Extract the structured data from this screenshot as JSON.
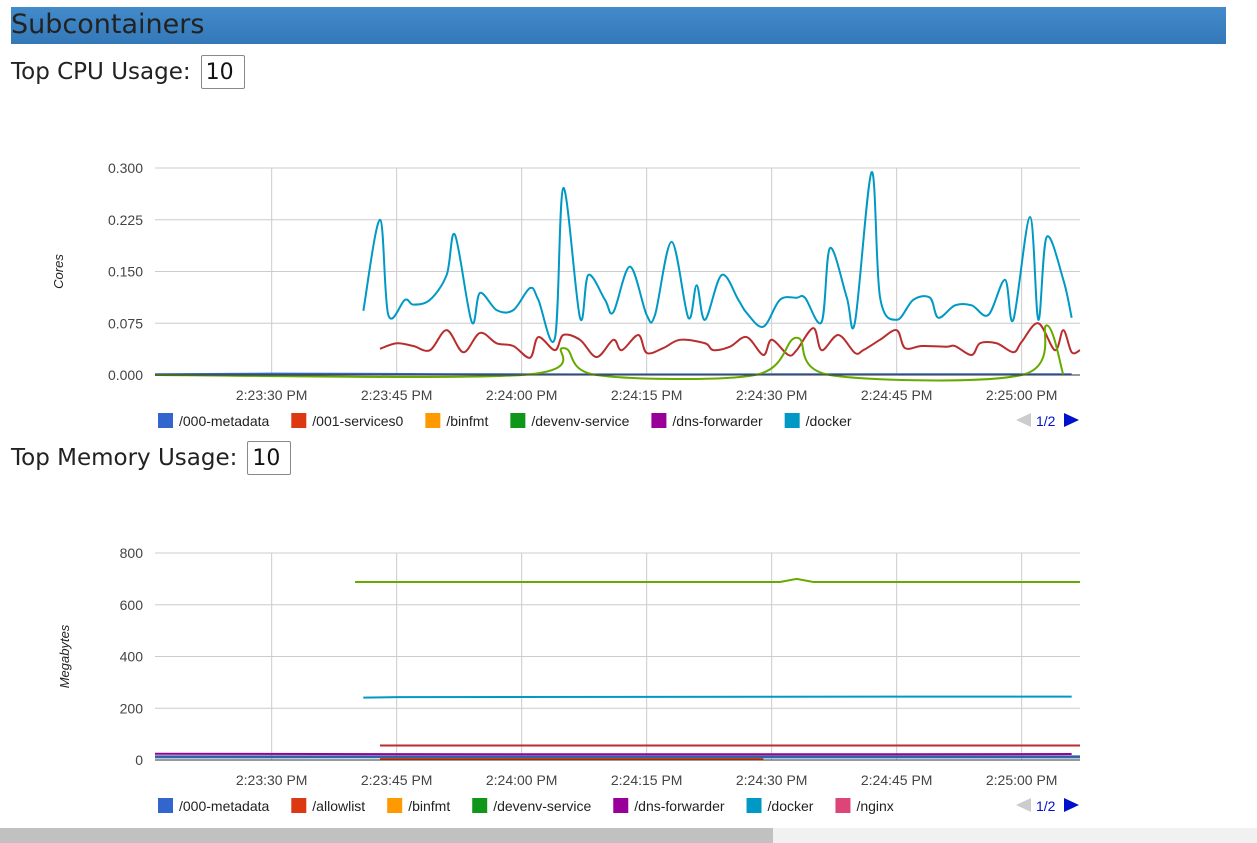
{
  "header": {
    "title": "Subcontainers"
  },
  "cpu": {
    "label": "Top CPU Usage:",
    "count": "10"
  },
  "memory": {
    "label": "Top Memory Usage:",
    "count": "10"
  },
  "chart_data": [
    {
      "type": "line",
      "ylabel": "Cores",
      "ylim": [
        0,
        0.3
      ],
      "yticks": [
        "0.000",
        "0.075",
        "0.150",
        "0.225",
        "0.300"
      ],
      "ytick_values": [
        0,
        0.075,
        0.15,
        0.225,
        0.3
      ],
      "xlim": [
        "14:23:16",
        "14:25:07"
      ],
      "xticks": [
        "2:23:30 PM",
        "2:23:45 PM",
        "2:24:00 PM",
        "2:24:15 PM",
        "2:24:30 PM",
        "2:24:45 PM",
        "2:25:00 PM"
      ],
      "xtick_times": [
        "14:23:30",
        "14:23:45",
        "14:24:00",
        "14:24:15",
        "14:24:30",
        "14:24:45",
        "14:25:00"
      ],
      "grid": true,
      "legend_position": "bottom",
      "legend_page": "1/2",
      "smooth": true,
      "legend": [
        {
          "name": "/000-metadata",
          "color": "#3366cc"
        },
        {
          "name": "/001-services0",
          "color": "#dc3912"
        },
        {
          "name": "/binfmt",
          "color": "#ff9900"
        },
        {
          "name": "/devenv-service",
          "color": "#109618"
        },
        {
          "name": "/dns-forwarder",
          "color": "#990099"
        },
        {
          "name": "/docker",
          "color": "#0099c6"
        }
      ],
      "series": [
        {
          "color": "#3366cc",
          "points": [
            [
              "14:23:16",
              0.001
            ],
            [
              "14:23:30",
              0.002
            ],
            [
              "14:24:00",
              0.001
            ],
            [
              "14:24:30",
              0.001
            ],
            [
              "14:25:06",
              0.001
            ]
          ]
        },
        {
          "color": "#b82e2e",
          "points": [
            [
              "14:23:43",
              0.038
            ],
            [
              "14:23:45",
              0.046
            ],
            [
              "14:23:47",
              0.042
            ],
            [
              "14:23:49",
              0.036
            ],
            [
              "14:23:51",
              0.065
            ],
            [
              "14:23:53",
              0.033
            ],
            [
              "14:23:55",
              0.061
            ],
            [
              "14:23:57",
              0.046
            ],
            [
              "14:23:59",
              0.042
            ],
            [
              "14:24:01",
              0.025
            ],
            [
              "14:24:02",
              0.055
            ],
            [
              "14:24:04",
              0.036
            ],
            [
              "14:24:05",
              0.058
            ],
            [
              "14:24:07",
              0.051
            ],
            [
              "14:24:09",
              0.026
            ],
            [
              "14:24:11",
              0.051
            ],
            [
              "14:24:12",
              0.036
            ],
            [
              "14:24:14",
              0.058
            ],
            [
              "14:24:15",
              0.032
            ],
            [
              "14:24:17",
              0.039
            ],
            [
              "14:24:19",
              0.051
            ],
            [
              "14:24:22",
              0.046
            ],
            [
              "14:24:23",
              0.036
            ],
            [
              "14:24:25",
              0.041
            ],
            [
              "14:24:27",
              0.055
            ],
            [
              "14:24:29",
              0.029
            ],
            [
              "14:24:30",
              0.051
            ],
            [
              "14:24:32",
              0.029
            ],
            [
              "14:24:33",
              0.036
            ],
            [
              "14:24:35",
              0.068
            ],
            [
              "14:24:36",
              0.036
            ],
            [
              "14:24:38",
              0.058
            ],
            [
              "14:24:40",
              0.032
            ],
            [
              "14:24:41",
              0.036
            ],
            [
              "14:24:43",
              0.051
            ],
            [
              "14:24:45",
              0.065
            ],
            [
              "14:24:46",
              0.039
            ],
            [
              "14:24:48",
              0.042
            ],
            [
              "14:24:51",
              0.041
            ],
            [
              "14:24:52",
              0.042
            ],
            [
              "14:24:54",
              0.029
            ],
            [
              "14:24:55",
              0.046
            ],
            [
              "14:24:57",
              0.046
            ],
            [
              "14:24:59",
              0.033
            ],
            [
              "14:25:00",
              0.048
            ],
            [
              "14:25:02",
              0.075
            ],
            [
              "14:25:04",
              0.036
            ],
            [
              "14:25:05",
              0.065
            ],
            [
              "14:25:06",
              0.033
            ],
            [
              "14:25:07",
              0.036
            ]
          ]
        },
        {
          "color": "#66aa00",
          "points": [
            [
              "14:23:16",
              0
            ],
            [
              "14:24:00",
              0
            ],
            [
              "14:24:05",
              0.039
            ],
            [
              "14:24:09",
              0
            ],
            [
              "14:24:28",
              0
            ],
            [
              "14:24:33",
              0.054
            ],
            [
              "14:24:37",
              0
            ],
            [
              "14:25:00",
              0
            ],
            [
              "14:25:03",
              0.072
            ],
            [
              "14:25:05",
              0
            ]
          ]
        },
        {
          "color": "#0099c6",
          "points": [
            [
              "14:23:41",
              0.093
            ],
            [
              "14:23:43",
              0.225
            ],
            [
              "14:23:44",
              0.087
            ],
            [
              "14:23:46",
              0.109
            ],
            [
              "14:23:47",
              0.102
            ],
            [
              "14:23:49",
              0.109
            ],
            [
              "14:23:51",
              0.145
            ],
            [
              "14:23:52",
              0.203
            ],
            [
              "14:23:54",
              0.077
            ],
            [
              "14:23:55",
              0.119
            ],
            [
              "14:23:57",
              0.094
            ],
            [
              "14:23:59",
              0.094
            ],
            [
              "14:24:01",
              0.126
            ],
            [
              "14:24:02",
              0.109
            ],
            [
              "14:24:04",
              0.054
            ],
            [
              "14:24:05",
              0.271
            ],
            [
              "14:24:07",
              0.083
            ],
            [
              "14:24:08",
              0.145
            ],
            [
              "14:24:10",
              0.109
            ],
            [
              "14:24:11",
              0.091
            ],
            [
              "14:24:13",
              0.157
            ],
            [
              "14:24:15",
              0.087
            ],
            [
              "14:24:16",
              0.087
            ],
            [
              "14:24:18",
              0.193
            ],
            [
              "14:24:20",
              0.083
            ],
            [
              "14:24:21",
              0.13
            ],
            [
              "14:24:22",
              0.08
            ],
            [
              "14:24:24",
              0.145
            ],
            [
              "14:24:26",
              0.109
            ],
            [
              "14:24:27",
              0.09
            ],
            [
              "14:24:29",
              0.07
            ],
            [
              "14:24:31",
              0.109
            ],
            [
              "14:24:33",
              0.112
            ],
            [
              "14:24:34",
              0.112
            ],
            [
              "14:24:36",
              0.077
            ],
            [
              "14:24:37",
              0.184
            ],
            [
              "14:24:39",
              0.113
            ],
            [
              "14:24:40",
              0.077
            ],
            [
              "14:24:42",
              0.294
            ],
            [
              "14:24:43",
              0.113
            ],
            [
              "14:24:45",
              0.08
            ],
            [
              "14:24:47",
              0.109
            ],
            [
              "14:24:49",
              0.112
            ],
            [
              "14:24:50",
              0.083
            ],
            [
              "14:24:52",
              0.101
            ],
            [
              "14:24:54",
              0.101
            ],
            [
              "14:24:56",
              0.087
            ],
            [
              "14:24:58",
              0.138
            ],
            [
              "14:24:59",
              0.08
            ],
            [
              "14:25:01",
              0.229
            ],
            [
              "14:25:02",
              0.08
            ],
            [
              "14:25:03",
              0.2
            ],
            [
              "14:25:05",
              0.138
            ],
            [
              "14:25:06",
              0.083
            ]
          ]
        }
      ]
    },
    {
      "type": "line",
      "ylabel": "Megabytes",
      "ylim": [
        0,
        800
      ],
      "yticks": [
        "0",
        "200",
        "400",
        "600",
        "800"
      ],
      "ytick_values": [
        0,
        200,
        400,
        600,
        800
      ],
      "xlim": [
        "14:23:16",
        "14:25:07"
      ],
      "xticks": [
        "2:23:30 PM",
        "2:23:45 PM",
        "2:24:00 PM",
        "2:24:15 PM",
        "2:24:30 PM",
        "2:24:45 PM",
        "2:25:00 PM"
      ],
      "xtick_times": [
        "14:23:30",
        "14:23:45",
        "14:24:00",
        "14:24:15",
        "14:24:30",
        "14:24:45",
        "14:25:00"
      ],
      "grid": true,
      "legend_position": "bottom",
      "legend_page": "1/2",
      "smooth": false,
      "legend": [
        {
          "name": "/000-metadata",
          "color": "#3366cc"
        },
        {
          "name": "/allowlist",
          "color": "#dc3912"
        },
        {
          "name": "/binfmt",
          "color": "#ff9900"
        },
        {
          "name": "/devenv-service",
          "color": "#109618"
        },
        {
          "name": "/dns-forwarder",
          "color": "#990099"
        },
        {
          "name": "/docker",
          "color": "#0099c6"
        },
        {
          "name": "/nginx",
          "color": "#dd4477"
        }
      ],
      "series": [
        {
          "color": "#3366cc",
          "points": [
            [
              "14:23:16",
              10
            ],
            [
              "14:24:00",
              11
            ],
            [
              "14:24:45",
              10
            ],
            [
              "14:25:07",
              10
            ]
          ]
        },
        {
          "color": "#316395",
          "points": [
            [
              "14:23:16",
              14
            ],
            [
              "14:25:07",
              14
            ]
          ]
        },
        {
          "color": "#990099",
          "points": [
            [
              "14:23:16",
              24
            ],
            [
              "14:24:00",
              22
            ],
            [
              "14:24:45",
              22
            ],
            [
              "14:25:06",
              23
            ]
          ]
        },
        {
          "color": "#dc3912",
          "points": [
            [
              "14:23:43",
              4
            ],
            [
              "14:24:29",
              4
            ]
          ]
        },
        {
          "color": "#b82e2e",
          "points": [
            [
              "14:23:43",
              56
            ],
            [
              "14:25:07",
              56
            ]
          ]
        },
        {
          "color": "#0099c6",
          "points": [
            [
              "14:23:41",
              241
            ],
            [
              "14:23:45",
              243
            ],
            [
              "14:24:15",
              244
            ],
            [
              "14:24:45",
              245
            ],
            [
              "14:25:06",
              245
            ]
          ]
        },
        {
          "color": "#66aa00",
          "points": [
            [
              "14:23:40",
              688
            ],
            [
              "14:24:31",
              688
            ],
            [
              "14:24:33",
              700
            ],
            [
              "14:24:35",
              688
            ],
            [
              "14:25:07",
              688
            ]
          ]
        }
      ]
    }
  ]
}
